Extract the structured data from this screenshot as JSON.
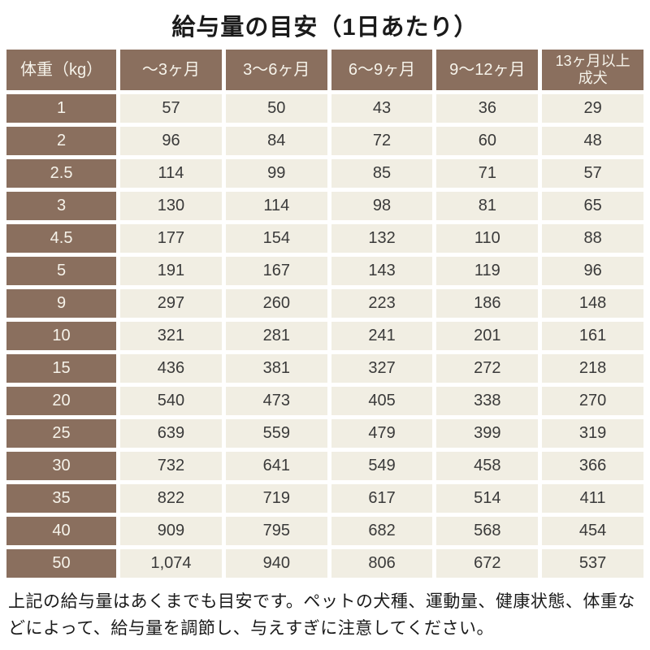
{
  "chart_data": {
    "type": "table",
    "title": "給与量の目安（1日あたり）",
    "columns": [
      "体重（kg）",
      "～3ヶ月",
      "3～6ヶ月",
      "6～9ヶ月",
      "9～12ヶ月",
      "13ヶ月以上\n成犬"
    ],
    "rows": [
      [
        "1",
        "57",
        "50",
        "43",
        "36",
        "29"
      ],
      [
        "2",
        "96",
        "84",
        "72",
        "60",
        "48"
      ],
      [
        "2.5",
        "114",
        "99",
        "85",
        "71",
        "57"
      ],
      [
        "3",
        "130",
        "114",
        "98",
        "81",
        "65"
      ],
      [
        "4.5",
        "177",
        "154",
        "132",
        "110",
        "88"
      ],
      [
        "5",
        "191",
        "167",
        "143",
        "119",
        "96"
      ],
      [
        "9",
        "297",
        "260",
        "223",
        "186",
        "148"
      ],
      [
        "10",
        "321",
        "281",
        "241",
        "201",
        "161"
      ],
      [
        "15",
        "436",
        "381",
        "327",
        "272",
        "218"
      ],
      [
        "20",
        "540",
        "473",
        "405",
        "338",
        "270"
      ],
      [
        "25",
        "639",
        "559",
        "479",
        "399",
        "319"
      ],
      [
        "30",
        "732",
        "641",
        "549",
        "458",
        "366"
      ],
      [
        "35",
        "822",
        "719",
        "617",
        "514",
        "411"
      ],
      [
        "40",
        "909",
        "795",
        "682",
        "568",
        "454"
      ],
      [
        "50",
        "1,074",
        "940",
        "806",
        "672",
        "537"
      ]
    ],
    "note": "上記の給与量はあくまでも目安です。ペットの犬種、運動量、健康状態、体重などによって、給与量を調節し、与えすぎに注意してください。"
  },
  "colors": {
    "header_brown": "#8a6f5e",
    "cell_cream": "#f1eee3",
    "gap_white": "#ffffff",
    "header_text": "#f6f3ea",
    "cell_text": "#3a3a3a",
    "title_text": "#1a1a1a"
  }
}
